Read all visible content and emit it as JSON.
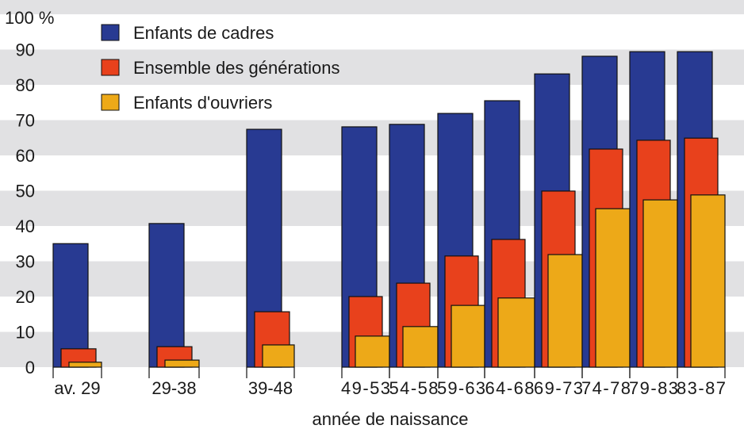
{
  "chart_data": {
    "type": "bar",
    "title": "",
    "xlabel": "année de naissance",
    "ylabel": "",
    "y_unit_label": "100 %",
    "ylim": [
      0,
      100
    ],
    "yticks": [
      "0",
      "10",
      "20",
      "30",
      "40",
      "50",
      "60",
      "70",
      "80",
      "90",
      "100 %"
    ],
    "grid": "alternating horizontal bands",
    "legend_position": "top-left",
    "categories": [
      "av. 29",
      "29-38",
      "39-48",
      "49-53",
      "54-58",
      "59-63",
      "64-68",
      "69-73",
      "74-78",
      "79-83",
      "83-87"
    ],
    "series": [
      {
        "name": "Enfants de cadres",
        "color": "#283a92",
        "values": [
          35,
          40.7,
          67.4,
          68.1,
          68.8,
          71.9,
          75.5,
          83.1,
          88.1,
          89.4,
          89.4
        ]
      },
      {
        "name": "Ensemble des générations",
        "color": "#e8411c",
        "values": [
          5.2,
          5.8,
          15.7,
          20.0,
          23.8,
          31.5,
          36.2,
          49.9,
          61.8,
          64.3,
          64.9
        ]
      },
      {
        "name": "Enfants d'ouvriers",
        "color": "#eda918",
        "values": [
          1.4,
          2.0,
          6.3,
          8.8,
          11.5,
          17.5,
          19.6,
          31.9,
          44.9,
          47.4,
          48.8
        ]
      }
    ]
  }
}
